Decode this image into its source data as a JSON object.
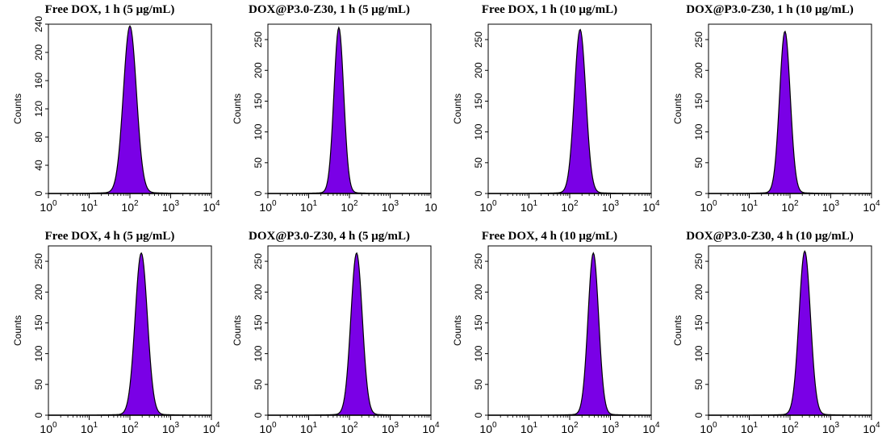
{
  "fill_color": "#7a00e6",
  "outline_color": "#000000",
  "chart_data": [
    {
      "type": "histogram",
      "title": "Free DOX, 1 h (5 μg/mL)",
      "ylabel": "Counts",
      "xscale": "log",
      "xlim": [
        1,
        10000
      ],
      "ylim": [
        0,
        240
      ],
      "yticks": [
        "0",
        "40",
        "80",
        "120",
        "160",
        "200",
        "240"
      ],
      "xticks": [
        "10^0",
        "10^1",
        "10^2",
        "10^3",
        "10^4"
      ],
      "peak_center": 100,
      "peak_height": 236,
      "peak_width": 0.16
    },
    {
      "type": "histogram",
      "title": "DOX@P3.0-Z30, 1 h (5 μg/mL)",
      "ylabel": "Counts",
      "xscale": "log",
      "xlim": [
        1,
        10000
      ],
      "ylim": [
        0,
        275
      ],
      "yticks": [
        "0",
        "50",
        "100",
        "150",
        "200",
        "250"
      ],
      "xticks": [
        "10^0",
        "10^1",
        "10^2",
        "10^3",
        "10"
      ],
      "peak_center": 55,
      "peak_height": 268,
      "peak_width": 0.12
    },
    {
      "type": "histogram",
      "title": "Free DOX, 1 h (10 μg/mL)",
      "ylabel": "Counts",
      "xscale": "log",
      "xlim": [
        1,
        10000
      ],
      "ylim": [
        0,
        275
      ],
      "yticks": [
        "0",
        "50",
        "100",
        "150",
        "200",
        "250"
      ],
      "xticks": [
        "10^0",
        "10^1",
        "10^2",
        "10^3",
        "10^4"
      ],
      "peak_center": 180,
      "peak_height": 265,
      "peak_width": 0.14
    },
    {
      "type": "histogram",
      "title": "DOX@P3.0-Z30, 1 h (10 μg/mL)",
      "ylabel": "Counts",
      "xscale": "log",
      "xlim": [
        1,
        10000
      ],
      "ylim": [
        0,
        275
      ],
      "yticks": [
        "0",
        "50",
        "100",
        "150",
        "200",
        "250"
      ],
      "xticks": [
        "10^0",
        "10^1",
        "10^2",
        "10^3",
        "10^4"
      ],
      "peak_center": 75,
      "peak_height": 262,
      "peak_width": 0.13
    },
    {
      "type": "histogram",
      "title": "Free DOX, 4 h (5 μg/mL)",
      "ylabel": "Counts",
      "xscale": "log",
      "xlim": [
        1,
        10000
      ],
      "ylim": [
        0,
        275
      ],
      "yticks": [
        "0",
        "50",
        "100",
        "150",
        "200",
        "250"
      ],
      "xticks": [
        "10^0",
        "10^1",
        "10^2",
        "10^3",
        "10^4"
      ],
      "peak_center": 190,
      "peak_height": 262,
      "peak_width": 0.15
    },
    {
      "type": "histogram",
      "title": "DOX@P3.0-Z30, 4 h (5 μg/mL)",
      "ylabel": "Counts",
      "xscale": "log",
      "xlim": [
        1,
        10000
      ],
      "ylim": [
        0,
        275
      ],
      "yticks": [
        "0",
        "50",
        "100",
        "150",
        "200",
        "250"
      ],
      "xticks": [
        "10^0",
        "10^1",
        "10^2",
        "10^3",
        "10^4"
      ],
      "peak_center": 150,
      "peak_height": 262,
      "peak_width": 0.14
    },
    {
      "type": "histogram",
      "title": "Free DOX, 4 h (10 μg/mL)",
      "ylabel": "Counts",
      "xscale": "log",
      "xlim": [
        1,
        10000
      ],
      "ylim": [
        0,
        275
      ],
      "yticks": [
        "0",
        "50",
        "100",
        "150",
        "200",
        "250"
      ],
      "xticks": [
        "10^0",
        "10^1",
        "10^2",
        "10^3",
        "10^4"
      ],
      "peak_center": 380,
      "peak_height": 262,
      "peak_width": 0.13
    },
    {
      "type": "histogram",
      "title": "DOX@P3.0-Z30, 4 h (10 μg/mL)",
      "ylabel": "Counts",
      "xscale": "log",
      "xlim": [
        1,
        10000
      ],
      "ylim": [
        0,
        275
      ],
      "yticks": [
        "0",
        "50",
        "100",
        "150",
        "200",
        "250"
      ],
      "xticks": [
        "10^0",
        "10^1",
        "10^2",
        "10^3",
        "10^4"
      ],
      "peak_center": 230,
      "peak_height": 265,
      "peak_width": 0.14
    }
  ]
}
